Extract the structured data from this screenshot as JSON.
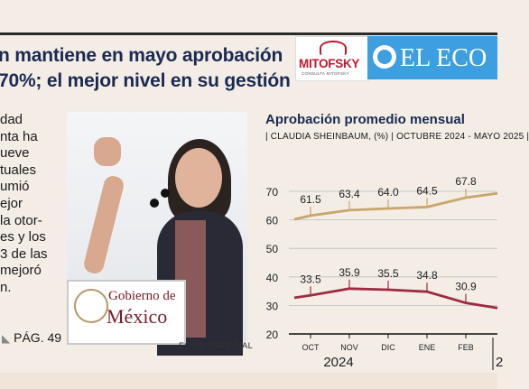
{
  "headline": {
    "line1": "n mantiene en mayo aprobación",
    "line2": "70%; el mejor nivel en su gestión"
  },
  "logos": {
    "mitofsky": "MITOFSKY",
    "mitofsky_sub": "CONSULTA MITOFSKY",
    "newspaper": "EL ECO"
  },
  "article": {
    "lines": [
      "dad",
      "nta ha",
      "ueve",
      "tuales",
      "umió",
      "ejor",
      "la otor-",
      "es y los",
      "3 de las",
      "mejoró",
      "n."
    ],
    "page_ref": "PÁG. 49"
  },
  "photo": {
    "podium_line1": "Gobierno de",
    "podium_line2": "México",
    "credit": "FOTO: ESPECIAL"
  },
  "chart_data": {
    "type": "line",
    "title": "Aprobación promedio mensual",
    "subtitle": "| CLAUDIA SHEINBAUM, (%) | OCTUBRE 2024 - MAYO 2025 |",
    "categories": [
      "OCT",
      "NOV",
      "DIC",
      "ENE",
      "FEB"
    ],
    "year_labels": [
      "2024",
      "2"
    ],
    "ylim": [
      20,
      70
    ],
    "yticks": [
      20,
      30,
      40,
      50,
      60,
      70
    ],
    "series": [
      {
        "values": [
          61.5,
          63.4,
          64.0,
          64.5,
          67.8
        ],
        "labels": [
          "61.5",
          "63.4",
          "64.0",
          "64.5",
          "67.8"
        ],
        "color": "#c9a56b"
      },
      {
        "values": [
          33.5,
          35.9,
          35.5,
          34.8,
          30.9
        ],
        "labels": [
          "33.5",
          "35.9",
          "35.5",
          "34.8",
          "30.9"
        ],
        "color": "#9e2a43"
      }
    ]
  }
}
